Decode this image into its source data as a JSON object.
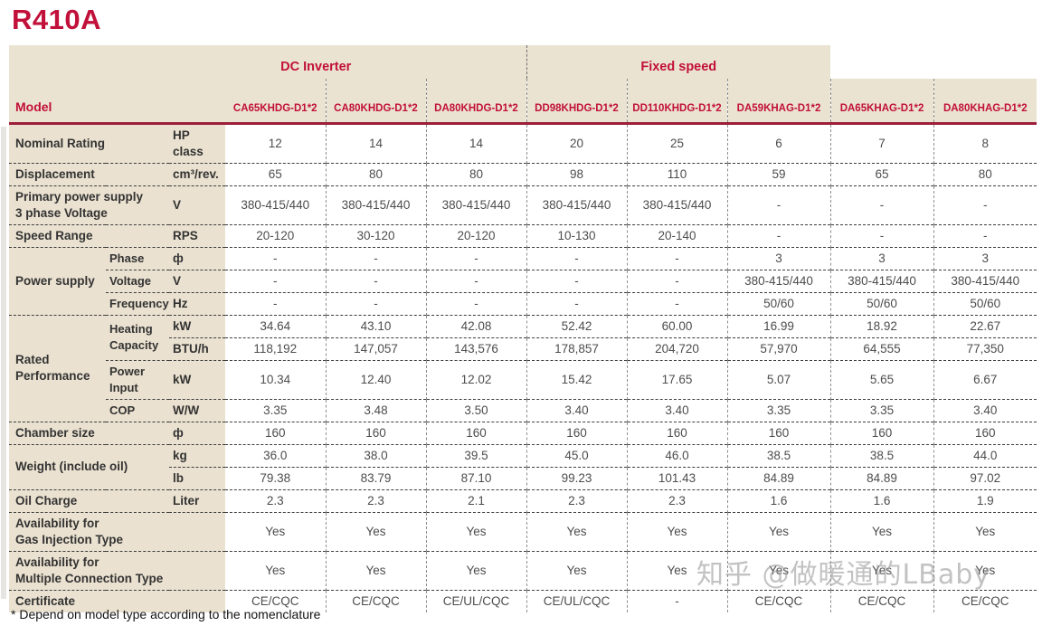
{
  "page": {
    "title": "R410A",
    "footnote": "* Depend on model type according to the nomenclature",
    "watermark": "知乎 @做暖通的LBaby"
  },
  "colors": {
    "accent_red": "#C11039",
    "rule_red": "#9B1F39",
    "header_beige": "#EBE3D2",
    "label_beige": "#EAE1D0"
  },
  "table": {
    "model_header": "Model",
    "groups": [
      {
        "label": "DC Inverter",
        "span": 5
      },
      {
        "label": "Fixed speed",
        "span": 3
      }
    ],
    "models": [
      "CA65KHDG-D1*2",
      "CA80KHDG-D1*2",
      "DA80KHDG-D1*2",
      "DD98KHDG-D1*2",
      "DD110KHDG-D1*2",
      "DA59KHAG-D1*2",
      "DA65KHAG-D1*2",
      "DA80KHAG-D1*2"
    ],
    "rows": [
      {
        "name": "nominal-rating",
        "cells": [
          {
            "t": "Nominal Rating",
            "type": "label",
            "colspan": 2
          },
          {
            "t": "HP class",
            "type": "unit"
          }
        ],
        "values": [
          "12",
          "14",
          "14",
          "20",
          "25",
          "6",
          "7",
          "8"
        ]
      },
      {
        "name": "displacement",
        "cells": [
          {
            "t": "Displacement",
            "type": "label",
            "colspan": 2
          },
          {
            "t": "cm³/rev.",
            "type": "unit"
          }
        ],
        "values": [
          "65",
          "80",
          "80",
          "98",
          "110",
          "59",
          "65",
          "80"
        ]
      },
      {
        "name": "primary-power-supply",
        "cells": [
          {
            "t": "Primary power supply\n3 phase Voltage",
            "type": "label",
            "colspan": 2
          },
          {
            "t": "V",
            "type": "unit"
          }
        ],
        "values": [
          "380-415/440",
          "380-415/440",
          "380-415/440",
          "380-415/440",
          "380-415/440",
          "-",
          "-",
          "-"
        ]
      },
      {
        "name": "speed-range",
        "cells": [
          {
            "t": "Speed Range",
            "type": "label",
            "colspan": 2
          },
          {
            "t": "RPS",
            "type": "unit"
          }
        ],
        "values": [
          "20-120",
          "30-120",
          "20-120",
          "10-130",
          "20-140",
          "-",
          "-",
          "-"
        ]
      },
      {
        "name": "power-supply-phase",
        "cells": [
          {
            "t": "Power supply",
            "type": "label",
            "rowspan": 3
          },
          {
            "t": "Phase",
            "type": "sub"
          },
          {
            "t": "ф",
            "type": "unit"
          }
        ],
        "values": [
          "-",
          "-",
          "-",
          "-",
          "-",
          "3",
          "3",
          "3"
        ]
      },
      {
        "name": "power-supply-voltage",
        "cells": [
          {
            "t": "Voltage",
            "type": "sub"
          },
          {
            "t": "V",
            "type": "unit"
          }
        ],
        "values": [
          "-",
          "-",
          "-",
          "-",
          "-",
          "380-415/440",
          "380-415/440",
          "380-415/440"
        ]
      },
      {
        "name": "power-supply-frequency",
        "cells": [
          {
            "t": "Frequency",
            "type": "sub"
          },
          {
            "t": "Hz",
            "type": "unit"
          }
        ],
        "values": [
          "-",
          "-",
          "-",
          "-",
          "-",
          "50/60",
          "50/60",
          "50/60"
        ]
      },
      {
        "name": "heating-capacity-kw",
        "cells": [
          {
            "t": "Rated\nPerformance",
            "type": "label",
            "rowspan": 4
          },
          {
            "t": "Heating\nCapacity",
            "type": "sub",
            "rowspan": 2
          },
          {
            "t": "kW",
            "type": "unit"
          }
        ],
        "values": [
          "34.64",
          "43.10",
          "42.08",
          "52.42",
          "60.00",
          "16.99",
          "18.92",
          "22.67"
        ]
      },
      {
        "name": "heating-capacity-btu",
        "cells": [
          {
            "t": "BTU/h",
            "type": "unit"
          }
        ],
        "values": [
          "118,192",
          "147,057",
          "143,576",
          "178,857",
          "204,720",
          "57,970",
          "64,555",
          "77,350"
        ]
      },
      {
        "name": "power-input",
        "cells": [
          {
            "t": "Power\nInput",
            "type": "sub"
          },
          {
            "t": "kW",
            "type": "unit"
          }
        ],
        "values": [
          "10.34",
          "12.40",
          "12.02",
          "15.42",
          "17.65",
          "5.07",
          "5.65",
          "6.67"
        ]
      },
      {
        "name": "cop",
        "cells": [
          {
            "t": "COP",
            "type": "sub"
          },
          {
            "t": "W/W",
            "type": "unit"
          }
        ],
        "values": [
          "3.35",
          "3.48",
          "3.50",
          "3.40",
          "3.40",
          "3.35",
          "3.35",
          "3.40"
        ]
      },
      {
        "name": "chamber-size",
        "cells": [
          {
            "t": "Chamber size",
            "type": "label",
            "colspan": 2
          },
          {
            "t": "ф",
            "type": "unit"
          }
        ],
        "values": [
          "160",
          "160",
          "160",
          "160",
          "160",
          "160",
          "160",
          "160"
        ]
      },
      {
        "name": "weight-kg",
        "cells": [
          {
            "t": "Weight (include oil)",
            "type": "label",
            "colspan": 2,
            "rowspan": 2
          },
          {
            "t": "kg",
            "type": "unit"
          }
        ],
        "values": [
          "36.0",
          "38.0",
          "39.5",
          "45.0",
          "46.0",
          "38.5",
          "38.5",
          "44.0"
        ]
      },
      {
        "name": "weight-lb",
        "cells": [
          {
            "t": "lb",
            "type": "unit"
          }
        ],
        "values": [
          "79.38",
          "83.79",
          "87.10",
          "99.23",
          "101.43",
          "84.89",
          "84.89",
          "97.02"
        ]
      },
      {
        "name": "oil-charge",
        "cells": [
          {
            "t": "Oil Charge",
            "type": "label",
            "colspan": 2
          },
          {
            "t": "Liter",
            "type": "unit"
          }
        ],
        "values": [
          "2.3",
          "2.3",
          "2.1",
          "2.3",
          "2.3",
          "1.6",
          "1.6",
          "1.9"
        ]
      },
      {
        "name": "gas-injection-availability",
        "cells": [
          {
            "t": "Availability for\nGas Injection Type",
            "type": "label",
            "colspan": 3
          }
        ],
        "values": [
          "Yes",
          "Yes",
          "Yes",
          "Yes",
          "Yes",
          "Yes",
          "Yes",
          "Yes"
        ]
      },
      {
        "name": "multiple-connection-availability",
        "cells": [
          {
            "t": "Availability for\nMultiple Connection Type",
            "type": "label",
            "colspan": 3
          }
        ],
        "values": [
          "Yes",
          "Yes",
          "Yes",
          "Yes",
          "Yes",
          "Yes",
          "Yes",
          "Yes"
        ]
      },
      {
        "name": "certificate",
        "cells": [
          {
            "t": "Certificate",
            "type": "label",
            "colspan": 3
          }
        ],
        "values": [
          "CE/CQC",
          "CE/CQC",
          "CE/UL/CQC",
          "CE/UL/CQC",
          "-",
          "CE/CQC",
          "CE/CQC",
          "CE/CQC"
        ]
      }
    ]
  }
}
